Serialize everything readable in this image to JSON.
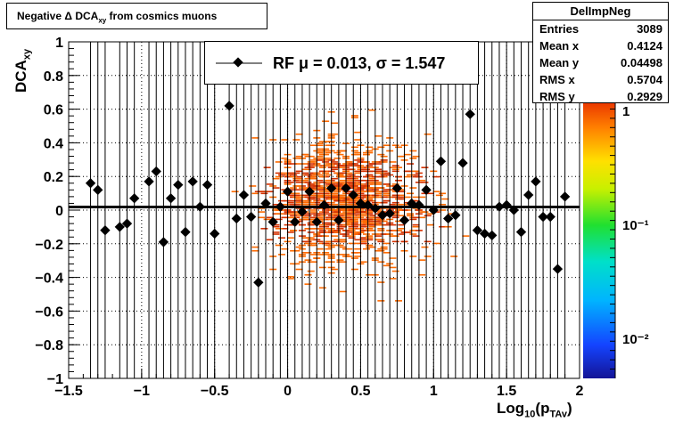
{
  "title": {
    "main": "Negative Δ DCA",
    "sub": "xy",
    "rest": " from cosmics muons"
  },
  "stats": {
    "name": "DelImpNeg",
    "rows": [
      {
        "label": "Entries",
        "value": "3089"
      },
      {
        "label": "Mean x",
        "value": "0.4124"
      },
      {
        "label": "Mean y",
        "value": "0.04498"
      },
      {
        "label": "RMS x",
        "value": "0.5704"
      },
      {
        "label": "RMS y",
        "value": "0.2929"
      }
    ]
  },
  "legend": {
    "text": "RF μ =  0.013, σ =   1.547"
  },
  "axes": {
    "xlabel_main": "Log",
    "xlabel_sub": "10",
    "xlabel_rest": "(p",
    "xlabel_sub2": "TAv",
    "xlabel_end": ")",
    "ylabel_main": "DCA",
    "ylabel_sub": "xy"
  },
  "colors": {
    "histogram_orange": "#ff6a00",
    "histogram_red": "#d43000",
    "points": "#000000",
    "fit_line": "#000000"
  },
  "chart_data": {
    "type": "scatter",
    "xlim": [
      -1.5,
      2
    ],
    "ylim": [
      -1,
      1
    ],
    "xticks": [
      "−1.5",
      "−1",
      "−0.5",
      "0",
      "0.5",
      "1",
      "1.5",
      "2"
    ],
    "yticks": [
      "−1",
      "−0.8",
      "−0.6",
      "−0.4",
      "−0.2",
      "0",
      "0.2",
      "0.4",
      "0.6",
      "0.8",
      "1"
    ],
    "grid": true,
    "colorbar": {
      "scale": "log",
      "labels": [
        "1",
        "10⁻¹",
        "10⁻²"
      ]
    },
    "fit_line": {
      "y": 0.013
    },
    "points": [
      [
        -1.35,
        0.16
      ],
      [
        -1.3,
        0.12
      ],
      [
        -1.25,
        -0.12
      ],
      [
        -1.15,
        -0.1
      ],
      [
        -1.1,
        -0.08
      ],
      [
        -1.05,
        0.07
      ],
      [
        -0.95,
        0.17
      ],
      [
        -0.9,
        0.23
      ],
      [
        -0.85,
        -0.19
      ],
      [
        -0.8,
        0.07
      ],
      [
        -0.75,
        0.15
      ],
      [
        -0.7,
        -0.13
      ],
      [
        -0.65,
        0.17
      ],
      [
        -0.6,
        0.02
      ],
      [
        -0.55,
        0.15
      ],
      [
        -0.5,
        -0.14
      ],
      [
        -0.4,
        0.62
      ],
      [
        -0.35,
        -0.05
      ],
      [
        -0.3,
        0.09
      ],
      [
        -0.25,
        -0.04
      ],
      [
        -0.2,
        -0.43
      ],
      [
        -0.15,
        0.04
      ],
      [
        -0.1,
        -0.07
      ],
      [
        -0.05,
        0.02
      ],
      [
        0.0,
        0.11
      ],
      [
        0.05,
        -0.07
      ],
      [
        0.1,
        -0.01
      ],
      [
        0.15,
        0.11
      ],
      [
        0.2,
        -0.07
      ],
      [
        0.25,
        0.03
      ],
      [
        0.3,
        0.13
      ],
      [
        0.35,
        -0.06
      ],
      [
        0.4,
        0.13
      ],
      [
        0.45,
        0.09
      ],
      [
        0.5,
        0.04
      ],
      [
        0.55,
        0.03
      ],
      [
        0.6,
        0.01
      ],
      [
        0.65,
        -0.03
      ],
      [
        0.7,
        -0.02
      ],
      [
        0.75,
        0.13
      ],
      [
        0.8,
        -0.06
      ],
      [
        0.85,
        0.04
      ],
      [
        0.9,
        0.03
      ],
      [
        0.95,
        0.12
      ],
      [
        1.0,
        0.0
      ],
      [
        1.05,
        0.29
      ],
      [
        1.1,
        -0.05
      ],
      [
        1.15,
        -0.03
      ],
      [
        1.2,
        0.28
      ],
      [
        1.25,
        0.57
      ],
      [
        1.3,
        -0.12
      ],
      [
        1.35,
        -0.14
      ],
      [
        1.4,
        -0.15
      ],
      [
        1.45,
        0.02
      ],
      [
        1.5,
        0.03
      ],
      [
        1.55,
        0.0
      ],
      [
        1.6,
        -0.13
      ],
      [
        1.65,
        0.09
      ],
      [
        1.7,
        0.17
      ],
      [
        1.75,
        -0.04
      ],
      [
        1.8,
        -0.04
      ],
      [
        1.85,
        -0.35
      ],
      [
        1.9,
        0.08
      ]
    ]
  }
}
